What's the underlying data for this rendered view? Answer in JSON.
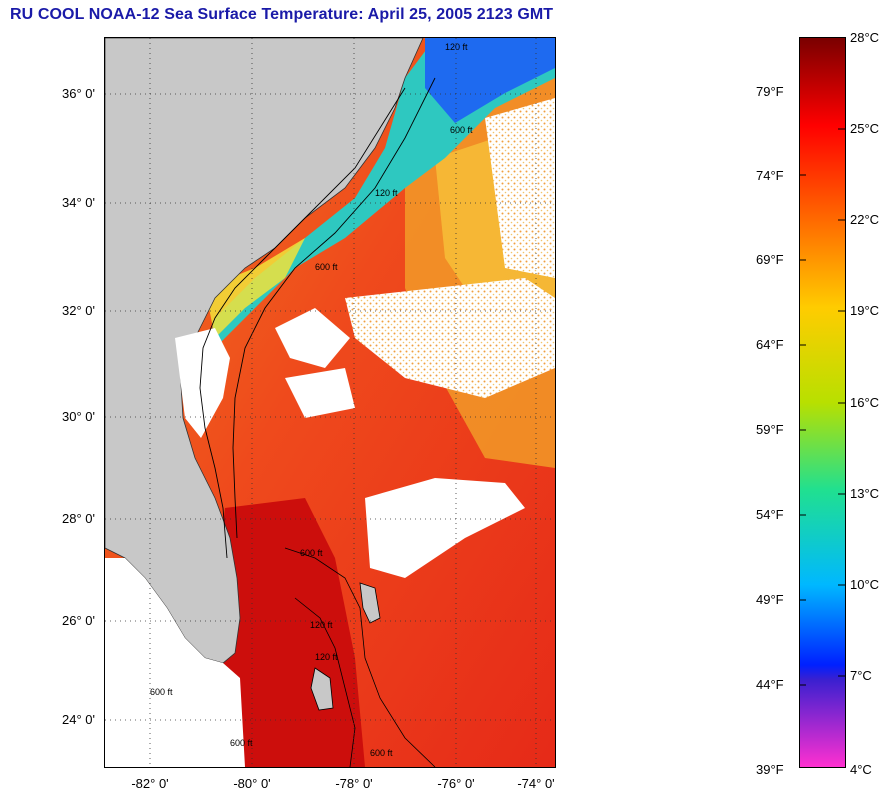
{
  "title": "RU COOL  NOAA-12  Sea Surface Temperature:  April 25, 2005 2123 GMT",
  "map": {
    "lat_labels": [
      "36° 0'",
      "34° 0'",
      "32° 0'",
      "30° 0'",
      "28° 0'",
      "26° 0'",
      "24° 0'"
    ],
    "lon_labels": [
      "-82° 0'",
      "-80° 0'",
      "-78° 0'",
      "-76° 0'",
      "-74° 0'"
    ],
    "contour_labels": [
      "120 ft",
      "600 ft",
      "120 ft",
      "600 ft",
      "600 ft",
      "120 ft",
      "120 ft",
      "600 ft",
      "600 ft",
      "600 ft"
    ],
    "colors": {
      "land": "#c8c8c8",
      "cloud": "#ffffff",
      "warm": "#e8201c",
      "gulfstream": "#d81210",
      "shelf": "#2ec8c0",
      "cold": "#1e6af0"
    }
  },
  "colorbar": {
    "celsius_labels": [
      "28°C",
      "25°C",
      "22°C",
      "19°C",
      "16°C",
      "13°C",
      "10°C",
      "7°C",
      "4°C"
    ],
    "fahrenheit_labels": [
      "79°F",
      "74°F",
      "69°F",
      "64°F",
      "59°F",
      "54°F",
      "49°F",
      "44°F",
      "39°F"
    ],
    "range_c": [
      4,
      28
    ]
  }
}
